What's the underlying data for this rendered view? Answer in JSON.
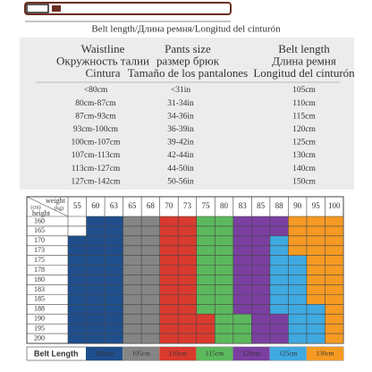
{
  "header": {
    "caption": "Belt length/Длина ремня/Longitud del cinturón"
  },
  "table": {
    "headers": [
      [
        "Waistline",
        "Окружность талии",
        "Cintura"
      ],
      [
        "Pants size",
        "размер брюк",
        "Tamaño de los pantalones"
      ],
      [
        "Belt length",
        "Длина ремня",
        "Longitud del cinturón"
      ]
    ],
    "rows": [
      [
        "<80cm",
        "<31in",
        "105cm"
      ],
      [
        "80cm-87cm",
        "31-34in",
        "110cm"
      ],
      [
        "87cm-93cm",
        "34-36in",
        "115cm"
      ],
      [
        "93cm-100cm",
        "36-39in",
        "120cm"
      ],
      [
        "100cm-107cm",
        "39-42in",
        "125cm"
      ],
      [
        "107cm-113cm",
        "42-44in",
        "130cm"
      ],
      [
        "113cm-127cm",
        "44-50in",
        "140cm"
      ],
      [
        "127cm-142cm",
        "50-56in",
        "150cm"
      ]
    ]
  },
  "grid": {
    "weight_label": "weight",
    "weight_unit": "(kg)",
    "height_unit": "(cm)",
    "height_label": "height",
    "weights": [
      55,
      60,
      63,
      65,
      68,
      70,
      73,
      75,
      80,
      83,
      85,
      88,
      90,
      95,
      100
    ],
    "heights": [
      160,
      165,
      170,
      173,
      175,
      178,
      180,
      183,
      185,
      188,
      190,
      195,
      200
    ],
    "cells": [
      [
        null,
        100,
        100,
        105,
        105,
        110,
        110,
        115,
        115,
        120,
        120,
        120,
        130,
        130,
        130
      ],
      [
        null,
        100,
        100,
        105,
        105,
        110,
        110,
        115,
        115,
        120,
        120,
        120,
        130,
        130,
        130
      ],
      [
        100,
        100,
        100,
        105,
        105,
        110,
        110,
        115,
        115,
        120,
        120,
        125,
        130,
        130,
        130
      ],
      [
        100,
        100,
        100,
        105,
        105,
        110,
        110,
        115,
        115,
        120,
        120,
        125,
        130,
        130,
        130
      ],
      [
        100,
        100,
        100,
        105,
        105,
        110,
        110,
        115,
        115,
        120,
        120,
        125,
        125,
        130,
        130
      ],
      [
        100,
        100,
        100,
        105,
        105,
        110,
        110,
        115,
        115,
        120,
        120,
        125,
        125,
        130,
        130
      ],
      [
        100,
        100,
        100,
        105,
        105,
        110,
        110,
        115,
        115,
        120,
        120,
        125,
        125,
        130,
        130
      ],
      [
        100,
        100,
        100,
        105,
        105,
        110,
        110,
        115,
        115,
        120,
        120,
        125,
        125,
        130,
        130
      ],
      [
        100,
        100,
        100,
        105,
        105,
        110,
        110,
        115,
        115,
        120,
        120,
        125,
        125,
        130,
        130
      ],
      [
        100,
        100,
        100,
        105,
        105,
        110,
        110,
        115,
        115,
        120,
        120,
        125,
        125,
        125,
        130
      ],
      [
        100,
        100,
        100,
        105,
        105,
        110,
        110,
        110,
        115,
        115,
        120,
        120,
        125,
        125,
        130
      ],
      [
        100,
        100,
        100,
        105,
        105,
        110,
        110,
        110,
        115,
        115,
        120,
        120,
        125,
        125,
        130
      ],
      [
        100,
        100,
        100,
        105,
        105,
        110,
        110,
        110,
        115,
        115,
        120,
        120,
        125,
        125,
        130
      ]
    ]
  },
  "legend": {
    "title": "Belt Length",
    "items": [
      {
        "label": "100cm",
        "value": 100,
        "color": "#1f4e8c"
      },
      {
        "label": "105cm",
        "value": 105,
        "color": "#858585"
      },
      {
        "label": "110cm",
        "value": 110,
        "color": "#d93a2e"
      },
      {
        "label": "115cm",
        "value": 115,
        "color": "#5cb85c"
      },
      {
        "label": "120cm",
        "value": 120,
        "color": "#7b3fa0"
      },
      {
        "label": "125cm",
        "value": 125,
        "color": "#3fa9e0"
      },
      {
        "label": "130cm",
        "value": 130,
        "color": "#f59a23"
      }
    ]
  }
}
